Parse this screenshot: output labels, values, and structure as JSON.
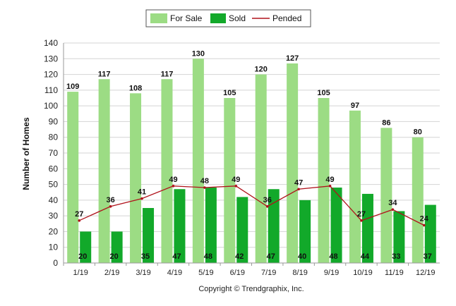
{
  "chart_data": {
    "type": "bar",
    "categories": [
      "1/19",
      "2/19",
      "3/19",
      "4/19",
      "5/19",
      "6/19",
      "7/19",
      "8/19",
      "9/19",
      "10/19",
      "11/19",
      "12/19"
    ],
    "series": [
      {
        "name": "For Sale",
        "kind": "bar",
        "color": "#9cdc84",
        "values": [
          109,
          117,
          108,
          117,
          130,
          105,
          120,
          127,
          105,
          97,
          86,
          80
        ]
      },
      {
        "name": "Sold",
        "kind": "bar",
        "color": "#12a92a",
        "values": [
          20,
          20,
          35,
          47,
          48,
          42,
          47,
          40,
          48,
          44,
          33,
          37
        ]
      },
      {
        "name": "Pended",
        "kind": "line",
        "color": "#b0121b",
        "values": [
          27,
          36,
          41,
          49,
          48,
          49,
          36,
          47,
          49,
          27,
          34,
          24
        ]
      }
    ],
    "ylabel": "Number of Homes",
    "xlabel": "",
    "ylim": [
      0,
      140
    ],
    "yticks": [
      0,
      10,
      20,
      30,
      40,
      50,
      60,
      70,
      80,
      90,
      100,
      110,
      120,
      130,
      140
    ],
    "grid": true,
    "legend_position": "top-center"
  },
  "footer": {
    "copyright": "Copyright © Trendgraphix, Inc."
  }
}
